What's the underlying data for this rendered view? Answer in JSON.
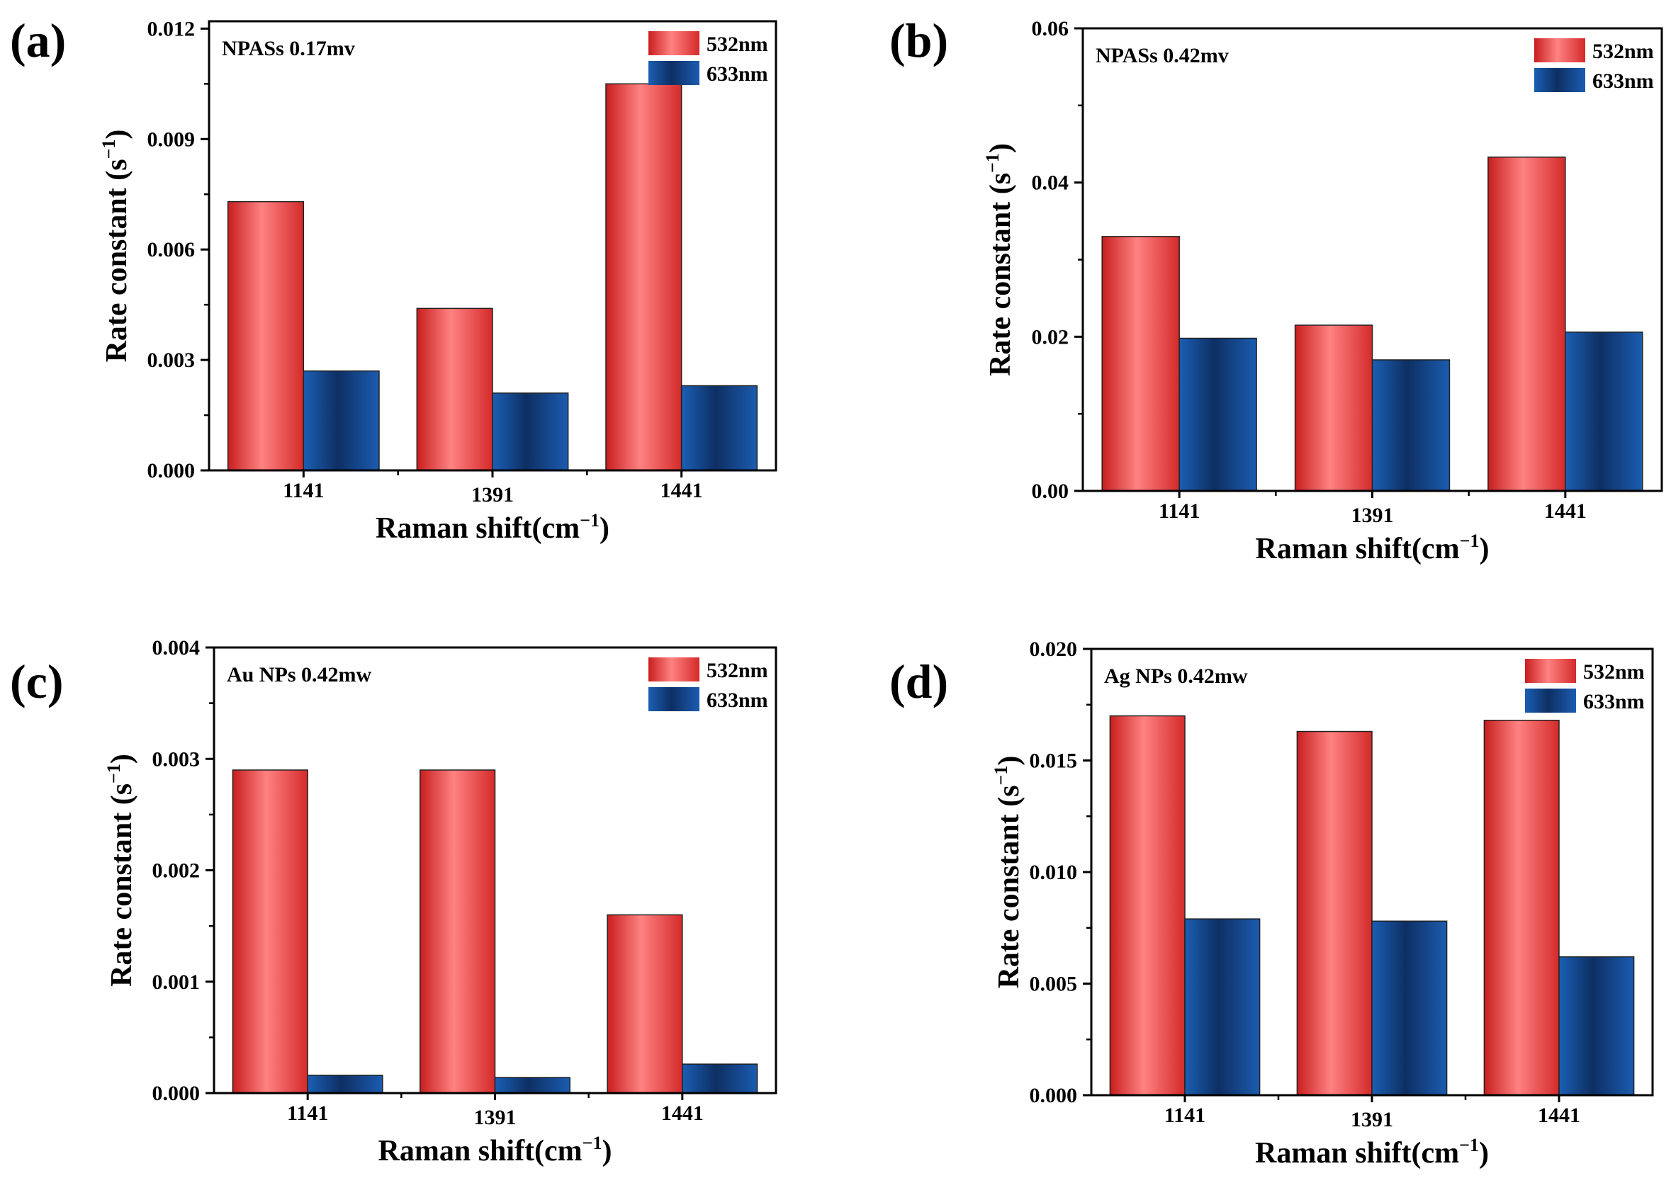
{
  "figure": {
    "series_colors": {
      "532nm": "#e03a3a",
      "633nm": "#1d4f95"
    }
  },
  "chart_data": [
    {
      "type": "bar",
      "panel": "(a)",
      "annotation": "NPASs 0.17mv",
      "xlabel": "Raman shift(cm",
      "xlabel_sup": "−1",
      "xlabel_end": ")",
      "ylabel": "Rate constant (s",
      "ylabel_sup": "−1",
      "ylabel_end": ")",
      "categories": [
        "1141",
        "1391",
        "1441"
      ],
      "series": [
        {
          "name": "532nm",
          "values": [
            0.0073,
            0.0044,
            0.0105
          ]
        },
        {
          "name": "633nm",
          "values": [
            0.0027,
            0.0021,
            0.0023
          ]
        }
      ],
      "ylim": [
        0,
        0.0122
      ],
      "yticks": [
        0.0,
        0.003,
        0.006,
        0.009,
        0.012
      ],
      "ytick_labels": [
        "0.000",
        "0.003",
        "0.006",
        "0.009",
        "0.012"
      ],
      "legend": "top-right"
    },
    {
      "type": "bar",
      "panel": "(b)",
      "annotation": "NPASs 0.42mv",
      "xlabel": "Raman shift(cm",
      "xlabel_sup": "−1",
      "xlabel_end": ")",
      "ylabel": "Rate constant (s",
      "ylabel_sup": "−1",
      "ylabel_end": ")",
      "categories": [
        "1141",
        "1391",
        "1441"
      ],
      "series": [
        {
          "name": "532nm",
          "values": [
            0.033,
            0.0215,
            0.0433
          ]
        },
        {
          "name": "633nm",
          "values": [
            0.0198,
            0.017,
            0.0206
          ]
        }
      ],
      "ylim": [
        0,
        0.06
      ],
      "yticks": [
        0.0,
        0.02,
        0.04,
        0.06
      ],
      "ytick_labels": [
        "0.00",
        "0.02",
        "0.04",
        "0.06"
      ],
      "legend": "top-right"
    },
    {
      "type": "bar",
      "panel": "(c)",
      "annotation": "Au NPs  0.42mw",
      "xlabel": "Raman shift(cm",
      "xlabel_sup": "−1",
      "xlabel_end": ")",
      "ylabel": "Rate constant (s",
      "ylabel_sup": "−1",
      "ylabel_end": ")",
      "categories": [
        "1141",
        "1391",
        "1441"
      ],
      "series": [
        {
          "name": "532nm",
          "values": [
            0.0029,
            0.0029,
            0.0016
          ]
        },
        {
          "name": "633nm",
          "values": [
            0.00016,
            0.00014,
            0.00026
          ]
        }
      ],
      "ylim": [
        0,
        0.004
      ],
      "yticks": [
        0.0,
        0.001,
        0.002,
        0.003,
        0.004
      ],
      "ytick_labels": [
        "0.000",
        "0.001",
        "0.002",
        "0.003",
        "0.004"
      ],
      "legend": "top-right"
    },
    {
      "type": "bar",
      "panel": "(d)",
      "annotation": "Ag NPs  0.42mw",
      "xlabel": "Raman shift(cm",
      "xlabel_sup": "−1",
      "xlabel_end": ")",
      "ylabel": "Rate constant (s",
      "ylabel_sup": "−1",
      "ylabel_end": ")",
      "categories": [
        "1141",
        "1391",
        "1441"
      ],
      "series": [
        {
          "name": "532nm",
          "values": [
            0.017,
            0.0163,
            0.0168
          ]
        },
        {
          "name": "633nm",
          "values": [
            0.0079,
            0.0078,
            0.0062
          ]
        }
      ],
      "ylim": [
        0,
        0.02
      ],
      "yticks": [
        0.0,
        0.005,
        0.01,
        0.015,
        0.02
      ],
      "ytick_labels": [
        "0.000",
        "0.005",
        "0.010",
        "0.015",
        "0.020"
      ],
      "legend": "top-right"
    }
  ]
}
